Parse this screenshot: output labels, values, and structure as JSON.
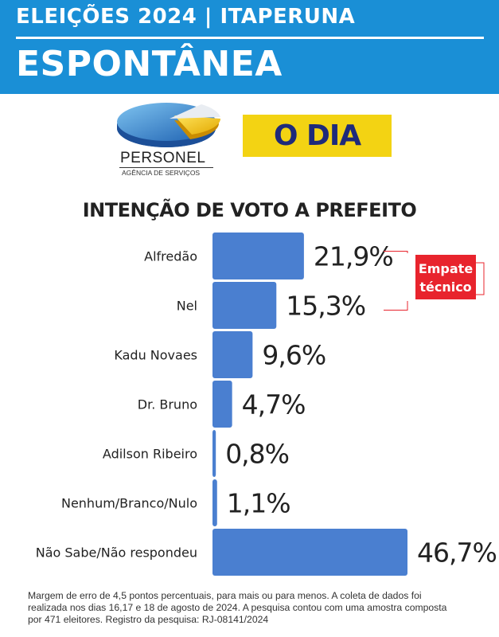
{
  "header": {
    "line1": "ELEIÇÕES 2024 | ITAPERUNA",
    "line2": "ESPONTÂNEA"
  },
  "logos": {
    "personel_name": "PERSONEL",
    "personel_tagline": "AGÊNCIA DE SERVIÇOS",
    "newspaper": "O DIA"
  },
  "annotation": {
    "line1": "Empate",
    "line2": "técnico"
  },
  "colors": {
    "header": "#1a8fd6",
    "bar": "#4a7fd0",
    "badge": "#e8242d",
    "odia_bg": "#f3d313",
    "odia_text": "#1e2a7a"
  },
  "chart_data": {
    "type": "bar",
    "orientation": "horizontal",
    "title": "INTENÇÃO DE VOTO A PREFEITO",
    "categories": [
      "Alfredão",
      "Nel",
      "Kadu Novaes",
      "Dr. Bruno",
      "Adilson Ribeiro",
      "Nenhum/Branco/Nulo",
      "Não Sabe/Não respondeu"
    ],
    "values": [
      21.9,
      15.3,
      9.6,
      4.7,
      0.8,
      1.1,
      46.7
    ],
    "value_labels": [
      "21,9%",
      "15,3%",
      "9,6%",
      "4,7%",
      "0,8%",
      "1,1%",
      "46,7%"
    ],
    "unit": "%",
    "xlim": [
      0,
      50
    ],
    "grid": false,
    "legend": "none"
  },
  "footer": {
    "line1": "Margem de erro de 4,5 pontos percentuais, para mais ou para menos. A coleta de dados foi",
    "line2": "realizada nos dias 16,17 e 18 de agosto de 2024. A pesquisa contou com uma amostra composta",
    "line3": "por 471 eleitores. Registro da pesquisa: RJ-08141/2024"
  }
}
